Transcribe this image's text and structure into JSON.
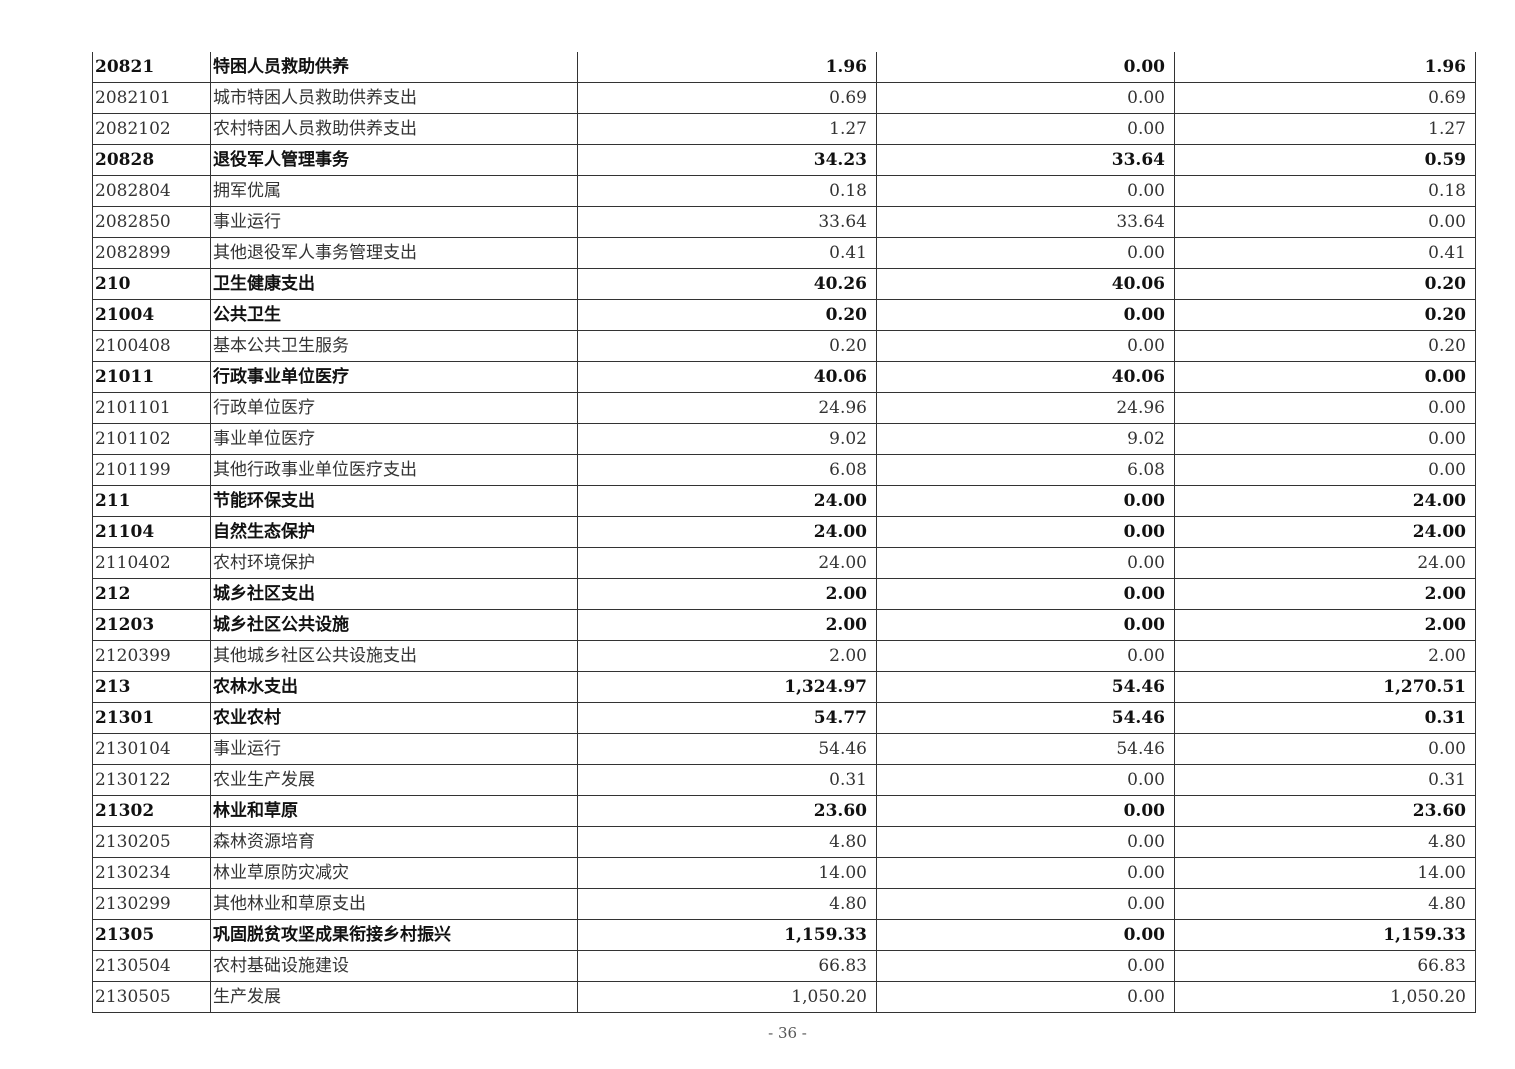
{
  "table": {
    "rows": [
      {
        "code": "20821",
        "name": "特困人员救助供养",
        "total": "1.96",
        "basic": "0.00",
        "project": "1.96",
        "bold": true
      },
      {
        "code": "2082101",
        "name": "城市特困人员救助供养支出",
        "total": "0.69",
        "basic": "0.00",
        "project": "0.69",
        "bold": false
      },
      {
        "code": "2082102",
        "name": "农村特困人员救助供养支出",
        "total": "1.27",
        "basic": "0.00",
        "project": "1.27",
        "bold": false
      },
      {
        "code": "20828",
        "name": "退役军人管理事务",
        "total": "34.23",
        "basic": "33.64",
        "project": "0.59",
        "bold": true
      },
      {
        "code": "2082804",
        "name": "拥军优属",
        "total": "0.18",
        "basic": "0.00",
        "project": "0.18",
        "bold": false
      },
      {
        "code": "2082850",
        "name": "事业运行",
        "total": "33.64",
        "basic": "33.64",
        "project": "0.00",
        "bold": false
      },
      {
        "code": "2082899",
        "name": "其他退役军人事务管理支出",
        "total": "0.41",
        "basic": "0.00",
        "project": "0.41",
        "bold": false
      },
      {
        "code": "210",
        "name": "卫生健康支出",
        "total": "40.26",
        "basic": "40.06",
        "project": "0.20",
        "bold": true
      },
      {
        "code": "21004",
        "name": "公共卫生",
        "total": "0.20",
        "basic": "0.00",
        "project": "0.20",
        "bold": true
      },
      {
        "code": "2100408",
        "name": "基本公共卫生服务",
        "total": "0.20",
        "basic": "0.00",
        "project": "0.20",
        "bold": false
      },
      {
        "code": "21011",
        "name": "行政事业单位医疗",
        "total": "40.06",
        "basic": "40.06",
        "project": "0.00",
        "bold": true
      },
      {
        "code": "2101101",
        "name": "行政单位医疗",
        "total": "24.96",
        "basic": "24.96",
        "project": "0.00",
        "bold": false
      },
      {
        "code": "2101102",
        "name": "事业单位医疗",
        "total": "9.02",
        "basic": "9.02",
        "project": "0.00",
        "bold": false
      },
      {
        "code": "2101199",
        "name": "其他行政事业单位医疗支出",
        "total": "6.08",
        "basic": "6.08",
        "project": "0.00",
        "bold": false
      },
      {
        "code": "211",
        "name": "节能环保支出",
        "total": "24.00",
        "basic": "0.00",
        "project": "24.00",
        "bold": true
      },
      {
        "code": "21104",
        "name": "自然生态保护",
        "total": "24.00",
        "basic": "0.00",
        "project": "24.00",
        "bold": true
      },
      {
        "code": "2110402",
        "name": "农村环境保护",
        "total": "24.00",
        "basic": "0.00",
        "project": "24.00",
        "bold": false
      },
      {
        "code": "212",
        "name": "城乡社区支出",
        "total": "2.00",
        "basic": "0.00",
        "project": "2.00",
        "bold": true
      },
      {
        "code": "21203",
        "name": "城乡社区公共设施",
        "total": "2.00",
        "basic": "0.00",
        "project": "2.00",
        "bold": true
      },
      {
        "code": "2120399",
        "name": "其他城乡社区公共设施支出",
        "total": "2.00",
        "basic": "0.00",
        "project": "2.00",
        "bold": false
      },
      {
        "code": "213",
        "name": "农林水支出",
        "total": "1,324.97",
        "basic": "54.46",
        "project": "1,270.51",
        "bold": true
      },
      {
        "code": "21301",
        "name": "农业农村",
        "total": "54.77",
        "basic": "54.46",
        "project": "0.31",
        "bold": true
      },
      {
        "code": "2130104",
        "name": "事业运行",
        "total": "54.46",
        "basic": "54.46",
        "project": "0.00",
        "bold": false
      },
      {
        "code": "2130122",
        "name": "农业生产发展",
        "total": "0.31",
        "basic": "0.00",
        "project": "0.31",
        "bold": false
      },
      {
        "code": "21302",
        "name": "林业和草原",
        "total": "23.60",
        "basic": "0.00",
        "project": "23.60",
        "bold": true
      },
      {
        "code": "2130205",
        "name": "森林资源培育",
        "total": "4.80",
        "basic": "0.00",
        "project": "4.80",
        "bold": false
      },
      {
        "code": "2130234",
        "name": "林业草原防灾减灾",
        "total": "14.00",
        "basic": "0.00",
        "project": "14.00",
        "bold": false
      },
      {
        "code": "2130299",
        "name": "其他林业和草原支出",
        "total": "4.80",
        "basic": "0.00",
        "project": "4.80",
        "bold": false
      },
      {
        "code": "21305",
        "name": "巩固脱贫攻坚成果衔接乡村振兴",
        "total": "1,159.33",
        "basic": "0.00",
        "project": "1,159.33",
        "bold": true
      },
      {
        "code": "2130504",
        "name": "农村基础设施建设",
        "total": "66.83",
        "basic": "0.00",
        "project": "66.83",
        "bold": false
      },
      {
        "code": "2130505",
        "name": "生产发展",
        "total": "1,050.20",
        "basic": "0.00",
        "project": "1,050.20",
        "bold": false
      }
    ]
  },
  "footer": {
    "page_number": "- 36 -"
  }
}
